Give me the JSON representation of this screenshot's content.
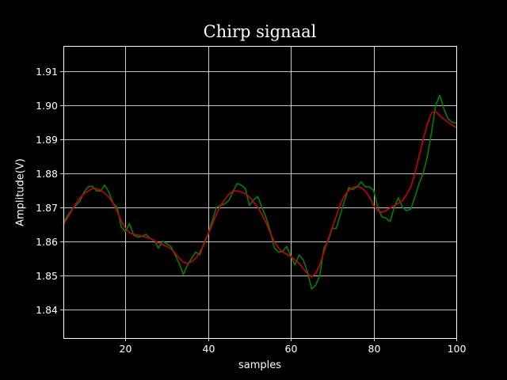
{
  "chart_data": {
    "type": "line",
    "title": "Chirp signaal",
    "xlabel": "samples",
    "ylabel": "Amplitude(V)",
    "xlim": [
      5,
      100
    ],
    "ylim": [
      1.8315,
      1.9175
    ],
    "xticks": [
      20,
      40,
      60,
      80,
      100
    ],
    "yticks": [
      1.84,
      1.85,
      1.86,
      1.87,
      1.88,
      1.89,
      1.9,
      1.91
    ],
    "ytick_labels": [
      "1.84",
      "1.85",
      "1.86",
      "1.87",
      "1.88",
      "1.89",
      "1.90",
      "1.91"
    ],
    "grid": true,
    "background": "#000000",
    "x": [
      5,
      6,
      7,
      8,
      9,
      10,
      11,
      12,
      13,
      14,
      15,
      16,
      17,
      18,
      19,
      20,
      21,
      22,
      23,
      24,
      25,
      26,
      27,
      28,
      29,
      30,
      31,
      32,
      33,
      34,
      35,
      36,
      37,
      38,
      39,
      40,
      41,
      42,
      43,
      44,
      45,
      46,
      47,
      48,
      49,
      50,
      51,
      52,
      53,
      54,
      55,
      56,
      57,
      58,
      59,
      60,
      61,
      62,
      63,
      64,
      65,
      66,
      67,
      68,
      69,
      70,
      71,
      72,
      73,
      74,
      75,
      76,
      77,
      78,
      79,
      80,
      81,
      82,
      83,
      84,
      85,
      86,
      87,
      88,
      89,
      90,
      91,
      92,
      93,
      94,
      95,
      96,
      97,
      98,
      99,
      100
    ],
    "series": [
      {
        "color": "#008000",
        "values": [
          1.8655,
          1.8675,
          1.8692,
          1.8705,
          1.8718,
          1.8745,
          1.876,
          1.8762,
          1.8748,
          1.8748,
          1.8765,
          1.8745,
          1.8712,
          1.87,
          1.8642,
          1.8628,
          1.8652,
          1.8618,
          1.8612,
          1.8615,
          1.862,
          1.8608,
          1.8602,
          1.858,
          1.86,
          1.8592,
          1.8585,
          1.856,
          1.8535,
          1.8502,
          1.853,
          1.855,
          1.8568,
          1.856,
          1.8595,
          1.8622,
          1.866,
          1.87,
          1.8705,
          1.871,
          1.872,
          1.8745,
          1.877,
          1.8765,
          1.8755,
          1.8705,
          1.8722,
          1.8732,
          1.87,
          1.867,
          1.863,
          1.858,
          1.8568,
          1.857,
          1.8585,
          1.8555,
          1.853,
          1.856,
          1.8545,
          1.851,
          1.846,
          1.847,
          1.85,
          1.858,
          1.86,
          1.8638,
          1.8638,
          1.868,
          1.872,
          1.8758,
          1.8752,
          1.876,
          1.8775,
          1.876,
          1.876,
          1.875,
          1.87,
          1.8672,
          1.8668,
          1.8658,
          1.87,
          1.8728,
          1.87,
          1.869,
          1.8695,
          1.873,
          1.877,
          1.88,
          1.885,
          1.892,
          1.9,
          1.903,
          1.899,
          1.896,
          1.895,
          1.8948
        ]
      },
      {
        "color": "#cc0000",
        "values": [
          1.8648,
          1.8668,
          1.869,
          1.871,
          1.8728,
          1.874,
          1.8748,
          1.8755,
          1.8755,
          1.875,
          1.8742,
          1.873,
          1.8712,
          1.8688,
          1.866,
          1.8638,
          1.8625,
          1.862,
          1.8618,
          1.8615,
          1.8612,
          1.8608,
          1.8602,
          1.8595,
          1.859,
          1.8585,
          1.8578,
          1.8565,
          1.855,
          1.8538,
          1.8535,
          1.854,
          1.855,
          1.8568,
          1.859,
          1.862,
          1.865,
          1.868,
          1.8705,
          1.8722,
          1.8738,
          1.8748,
          1.8748,
          1.8745,
          1.874,
          1.873,
          1.8715,
          1.87,
          1.868,
          1.8655,
          1.8625,
          1.8598,
          1.858,
          1.8568,
          1.8562,
          1.8555,
          1.8545,
          1.8535,
          1.852,
          1.8505,
          1.8495,
          1.8505,
          1.853,
          1.8568,
          1.8605,
          1.864,
          1.8675,
          1.871,
          1.8735,
          1.875,
          1.8758,
          1.8762,
          1.8758,
          1.8748,
          1.873,
          1.8705,
          1.869,
          1.8685,
          1.869,
          1.8698,
          1.8705,
          1.8712,
          1.872,
          1.8738,
          1.876,
          1.88,
          1.885,
          1.89,
          1.8945,
          1.8978,
          1.8982,
          1.897,
          1.896,
          1.895,
          1.8942,
          1.8935
        ]
      }
    ]
  }
}
